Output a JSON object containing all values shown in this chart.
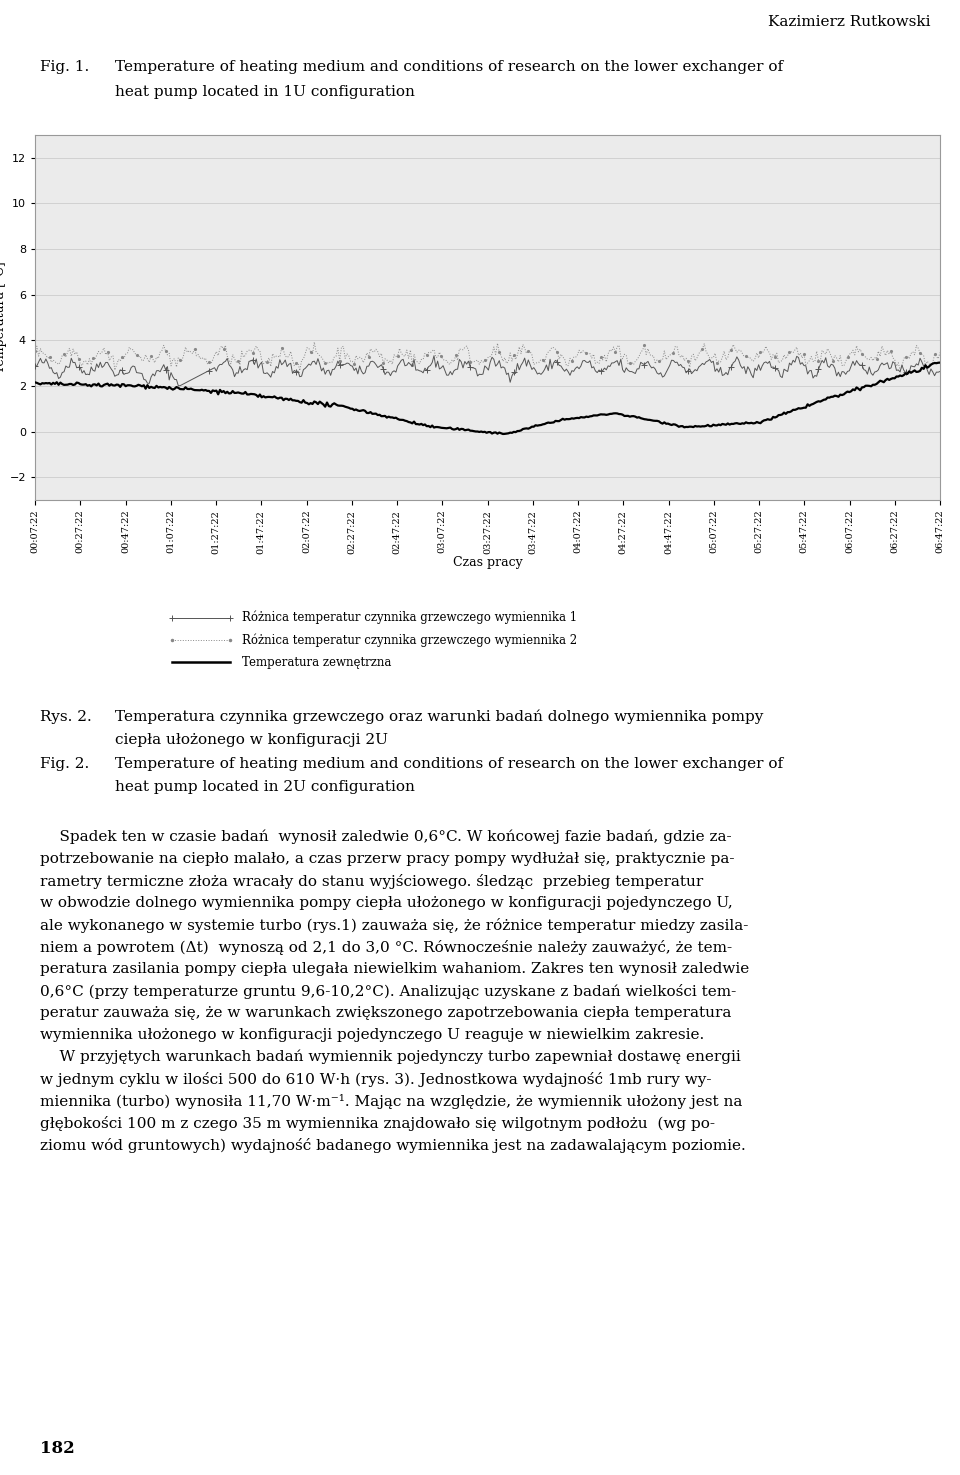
{
  "header_author": "Kazimierz Rutkowski",
  "fig1_label": "Fig. 1.",
  "fig1_text_line1": "Temperature of heating medium and conditions of research on the lower exchanger of",
  "fig1_text_line2": "heat pump located in 1U configuration",
  "ylabel": "Temperatura [°C]",
  "xlabel": "Czas pracy",
  "yticks": [
    -2,
    0,
    2,
    4,
    6,
    8,
    10,
    12
  ],
  "ylim": [
    -3,
    13
  ],
  "xtick_labels": [
    "00:07:22",
    "00:27:22",
    "00:47:22",
    "01:07:22",
    "01:27:22",
    "01:47:22",
    "02:07:22",
    "02:27:22",
    "02:47:22",
    "03:07:22",
    "03:27:22",
    "03:47:22",
    "04:07:22",
    "04:27:22",
    "04:47:22",
    "05:07:22",
    "05:27:22",
    "05:47:22",
    "06:07:22",
    "06:27:22",
    "06:47:22"
  ],
  "legend_line1": "Różnica temperatur czynnika grzewczego wymiennika 1",
  "legend_line2": "Różnica temperatur czynnika grzewczego wymiennika 2",
  "legend_line3": "Temperatura zewnętrzna",
  "rys2_label": "Rys. 2.",
  "rys2_text_line1": "Temperatura czynnika grzewczego oraz warunki badań dolnego wymiennika pompy",
  "rys2_text_line2": "ciepła ułożonego w konfiguracji 2U",
  "fig2_label": "Fig. 2.",
  "fig2_text_line1": "Temperature of heating medium and conditions of research on the lower exchanger of",
  "fig2_text_line2": "heat pump located in 2U configuration",
  "body_indent": "    Spadek ten w czasie badań  wynosił zaledwie 0,6°C. W końcowej fazie badań, gdzie za-",
  "body_lines": [
    "potrzebowanie na ciepło malało, a czas przerw pracy pompy wydłużał się, praktycznie pa-",
    "rametry termiczne złoża wracały do stanu wyjściowego. śledząc  przebieg temperatur",
    "w obwodzie dolnego wymiennika pompy ciepła ułożonego w konfiguracji pojedynczego U,",
    "ale wykonanego w systemie turbo (rys.1) zauważa się, że różnice temperatur miedzy zasila-",
    "niem a powrotem (Δt)  wynoszą od 2,1 do 3,0 °C. Równocześnie należy zauważyć, że tem-",
    "peratura zasilania pompy ciepła ulegała niewielkim wahaniom. Zakres ten wynosił zaledwie",
    "0,6°C (przy temperaturze gruntu 9,6-10,2°C). Analizując uzyskane z badań wielkości tem-",
    "peratur zauważa się, że w warunkach zwiększonego zapotrzebowania ciepła temperatura",
    "wymiennika ułożonego w konfiguracji pojedynczego U reaguje w niewielkim zakresie."
  ],
  "body2_indent": "    W przyjętych warunkach badań wymiennik pojedynczy turbo zapewniał dostawę energii",
  "body2_lines": [
    "w jednym cyklu w ilości 500 do 610 W·h (rys. 3). Jednostkowa wydajność 1mb rury wy-",
    "miennika (turbo) wynosiła 11,70 W·m⁻¹. Mając na względzie, że wymiennik ułożony jest na",
    "głębokości 100 m z czego 35 m wymiennika znajdowało się wilgotnym podłożu  (wg po-",
    "ziomu wód gruntowych) wydajność badanego wymiennika jest na zadawalającym poziomie."
  ],
  "page_number": "182",
  "background_color": "#ffffff",
  "chart_bg": "#ebebeb",
  "line1_color": "#555555",
  "line2_color": "#888888",
  "line3_color": "#000000",
  "separator_color": "#000000"
}
